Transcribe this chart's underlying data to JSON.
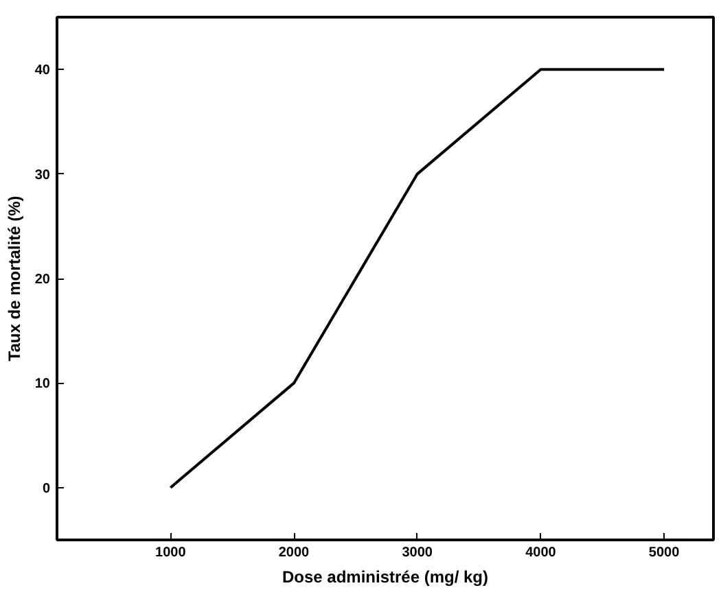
{
  "chart_data": {
    "type": "line",
    "xlabel": "Dose administrée (mg/ kg)",
    "ylabel": "Taux de mortalité (%)",
    "x": [
      1000,
      2000,
      3000,
      4000,
      5000
    ],
    "series": [
      {
        "color": "#000000",
        "values": [
          0,
          10,
          30,
          40,
          40
        ]
      }
    ],
    "xlim": [
      80,
      5400
    ],
    "ylim": [
      -5,
      45
    ],
    "xticks": [
      1000,
      2000,
      3000,
      4000,
      5000
    ],
    "yticks": [
      0,
      10,
      20,
      30,
      40
    ],
    "grid": false,
    "marker": "none",
    "line_style": "solid"
  }
}
